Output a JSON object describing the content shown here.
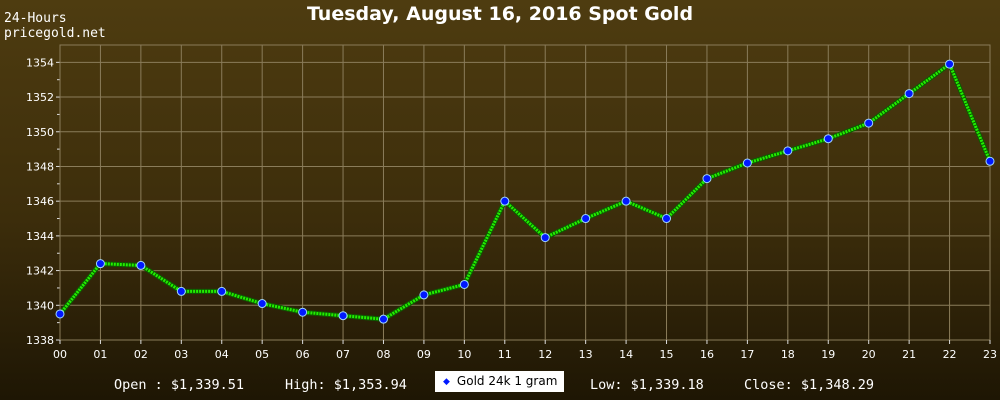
{
  "header": {
    "title": "Tuesday, August 16, 2016 Spot Gold",
    "period": "24-Hours",
    "site": "pricegold.net"
  },
  "stats": {
    "open": "Open : $1,339.51",
    "high": "High: $1,353.94",
    "low": "Low: $1,339.18",
    "close": "Close: $1,348.29"
  },
  "colors": {
    "line": "#22ee00",
    "marker": "#0018ff",
    "grid": "#8a7c5a"
  },
  "chart_data": {
    "type": "line",
    "title": "Tuesday, August 16, 2016 Spot Gold",
    "x": [
      "00",
      "01",
      "02",
      "03",
      "04",
      "05",
      "06",
      "07",
      "08",
      "09",
      "10",
      "11",
      "12",
      "13",
      "14",
      "15",
      "16",
      "17",
      "18",
      "19",
      "20",
      "21",
      "22",
      "23"
    ],
    "series": [
      {
        "name": "Gold 24k 1 gram",
        "values": [
          1339.5,
          1342.4,
          1342.3,
          1340.8,
          1340.8,
          1340.1,
          1339.6,
          1339.4,
          1339.2,
          1340.6,
          1341.2,
          1346.0,
          1343.9,
          1345.0,
          1346.0,
          1345.0,
          1347.3,
          1348.2,
          1348.9,
          1349.6,
          1350.5,
          1352.2,
          1353.9,
          1348.3
        ]
      }
    ],
    "y_ticks": [
      1338,
      1340,
      1342,
      1344,
      1346,
      1348,
      1350,
      1352,
      1354
    ],
    "ylim": [
      1338,
      1355
    ],
    "grid": true,
    "legend": "bottom"
  }
}
